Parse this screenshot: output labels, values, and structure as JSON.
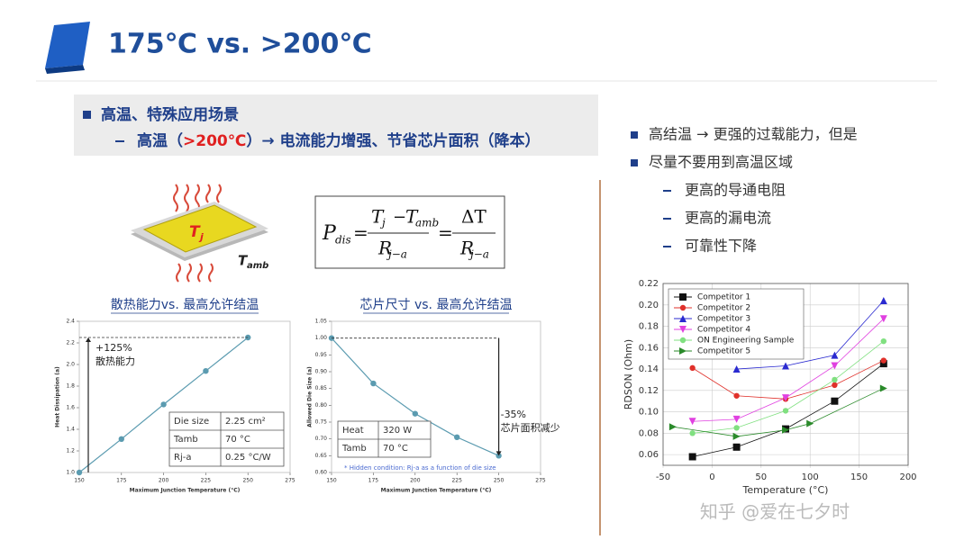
{
  "title": "175℃ vs. >200℃",
  "box": {
    "bullet": "高温、特殊应用场景",
    "sub_a": "高温（",
    "sub_b": ">200℃",
    "sub_c": "）→ 电流能力增强、节省芯片面积（降本）"
  },
  "chip_labels": {
    "tj": "T",
    "tj_sub": "j",
    "tamb": "T",
    "tamb_sub": "amb"
  },
  "formula": [
    "P",
    "dis",
    "=",
    "T",
    "j",
    "−",
    "T",
    "amb",
    "R",
    "j−a",
    "=",
    "ΔT",
    "R",
    "j−a"
  ],
  "right": {
    "bullets": [
      "高结温 → 更强的过载能力，但是",
      "尽量不要用到高温区域"
    ],
    "subs": [
      "更高的导通电阻",
      "更高的漏电流",
      "可靠性下降"
    ]
  },
  "watermark": "知乎 @爱在七夕时",
  "chart_data": [
    {
      "type": "line",
      "title": "散热能力vs. 最高允许结温",
      "x": [
        150,
        175,
        200,
        225,
        250
      ],
      "values": [
        1.0,
        1.31,
        1.63,
        1.94,
        2.25
      ],
      "color": "#5b9bb0",
      "xlim": [
        150,
        275
      ],
      "xticks": [
        150,
        175,
        200,
        225,
        250,
        275
      ],
      "ylim": [
        1.0,
        2.4
      ],
      "yticks": [
        {
          "value": 1.0,
          "label": "1.0"
        },
        1.2,
        1.4,
        1.6,
        1.8,
        {
          "value": 2.0,
          "label": "2.0"
        },
        2.2,
        2.4
      ],
      "xlabel": "Maximum Junction Temperature (°C)",
      "ylabel": "Heat Dissipation (a)",
      "annotations": [
        "+125%",
        "散热能力"
      ],
      "table": [
        [
          "Die size",
          "2.25 cm²"
        ],
        [
          "Tamb",
          "70 °C"
        ],
        [
          "Rj-a",
          "0.25 °C/W"
        ]
      ]
    },
    {
      "type": "line",
      "title": "芯片尺寸 vs. 最高允许结温",
      "x": [
        150,
        175,
        200,
        225,
        250
      ],
      "values": [
        1.0,
        0.865,
        0.775,
        0.705,
        0.65
      ],
      "color": "#5b9bb0",
      "xlim": [
        150,
        275
      ],
      "xticks": [
        150,
        175,
        200,
        225,
        250,
        275
      ],
      "ylim": [
        0.6,
        1.05
      ],
      "yticks": [
        {
          "value": 0.6,
          "label": "0.60"
        },
        0.65,
        {
          "value": 0.7,
          "label": "0.70"
        },
        0.75,
        {
          "value": 0.8,
          "label": "0.80"
        },
        0.85,
        {
          "value": 0.9,
          "label": "0.90"
        },
        0.95,
        {
          "value": 1.0,
          "label": "1.00"
        },
        1.05
      ],
      "xlabel": "Maximum Junction Temperature (°C)",
      "ylabel": "Allowed Die Size (a)",
      "annotations": [
        "-35%",
        "芯片面积减少"
      ],
      "table": [
        [
          "Heat",
          "320 W"
        ],
        [
          "Tamb",
          "70 °C"
        ]
      ],
      "note": "* Hidden condition: Rj-a as a function of die size"
    },
    {
      "type": "line",
      "grid": true,
      "legend": "upper-left",
      "xlim": [
        -50,
        200
      ],
      "xticks": [
        -50,
        0,
        50,
        100,
        150,
        200
      ],
      "ylim": [
        0.05,
        0.22
      ],
      "yticks": [
        0.06,
        0.08,
        {
          "value": 0.1,
          "label": "0.10"
        },
        0.12,
        0.14,
        0.16,
        0.18,
        {
          "value": 0.2,
          "label": "0.20"
        },
        0.22
      ],
      "xlabel": "Temperature (°C)",
      "ylabel": "RDSON (Ohm)",
      "series": [
        {
          "name": "Competitor 1",
          "color": "#111111",
          "marker": "square",
          "x": [
            -20,
            25,
            75,
            125,
            175
          ],
          "values": [
            0.058,
            0.067,
            0.084,
            0.11,
            0.145
          ]
        },
        {
          "name": "Competitor 2",
          "color": "#e0302a",
          "marker": "circle",
          "x": [
            -20,
            25,
            75,
            125,
            175
          ],
          "values": [
            0.141,
            0.115,
            0.112,
            0.125,
            0.148
          ]
        },
        {
          "name": "Competitor 3",
          "color": "#2a2ad0",
          "marker": "triangle-up",
          "x": [
            25,
            75,
            125,
            175
          ],
          "values": [
            0.14,
            0.143,
            0.153,
            0.204
          ]
        },
        {
          "name": "Competitor 4",
          "color": "#e040e0",
          "marker": "triangle-down",
          "x": [
            -20,
            25,
            75,
            125,
            175
          ],
          "values": [
            0.091,
            0.093,
            0.113,
            0.143,
            0.187
          ]
        },
        {
          "name": "ON Engineering Sample",
          "color": "#80e080",
          "marker": "circle",
          "x": [
            -20,
            25,
            75,
            125,
            175
          ],
          "values": [
            0.08,
            0.085,
            0.101,
            0.13,
            0.166
          ]
        },
        {
          "name": "Competitor 5",
          "color": "#2a8a2a",
          "marker": "triangle-right",
          "x": [
            -40,
            25,
            75,
            100,
            175
          ],
          "values": [
            0.086,
            0.077,
            0.083,
            0.089,
            0.122
          ]
        }
      ]
    }
  ]
}
